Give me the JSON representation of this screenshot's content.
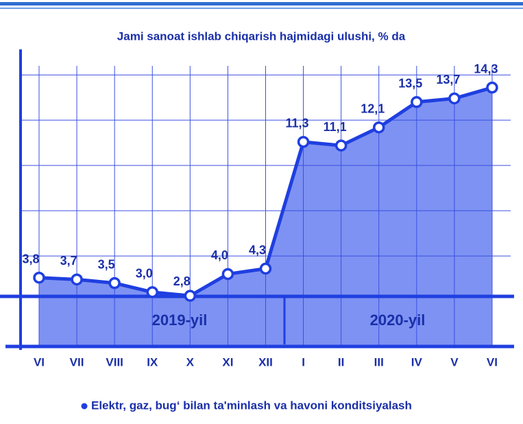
{
  "chart_data": {
    "type": "area",
    "title": "Jami sanoat ishlab chiqarish hajmidagi ulushi, % da",
    "categories": [
      "VI",
      "VII",
      "VIII",
      "IX",
      "X",
      "XI",
      "XII",
      "I",
      "II",
      "III",
      "IV",
      "V",
      "VI"
    ],
    "series": [
      {
        "name": "Elektr, gaz, bug‘ bilan ta'minlash va havoni konditsiyalash",
        "color": "#1f3fe0",
        "values": [
          3.8,
          3.7,
          3.5,
          3.0,
          2.8,
          4.0,
          4.3,
          11.3,
          11.1,
          12.1,
          13.5,
          13.7,
          14.3
        ],
        "value_labels": [
          "3,8",
          "3,7",
          "3,5",
          "3,0",
          "2,8",
          "4,0",
          "4,3",
          "11,3",
          "11,1",
          "12,1",
          "13,5",
          "13,7",
          "14,3"
        ]
      }
    ],
    "annotations": [
      "2019-yil",
      "2020-yil"
    ],
    "ylim": [
      0,
      15.5
    ],
    "yticks": [
      5,
      7.5,
      10,
      12.5,
      15
    ],
    "grid": true,
    "legend": "bottom"
  }
}
